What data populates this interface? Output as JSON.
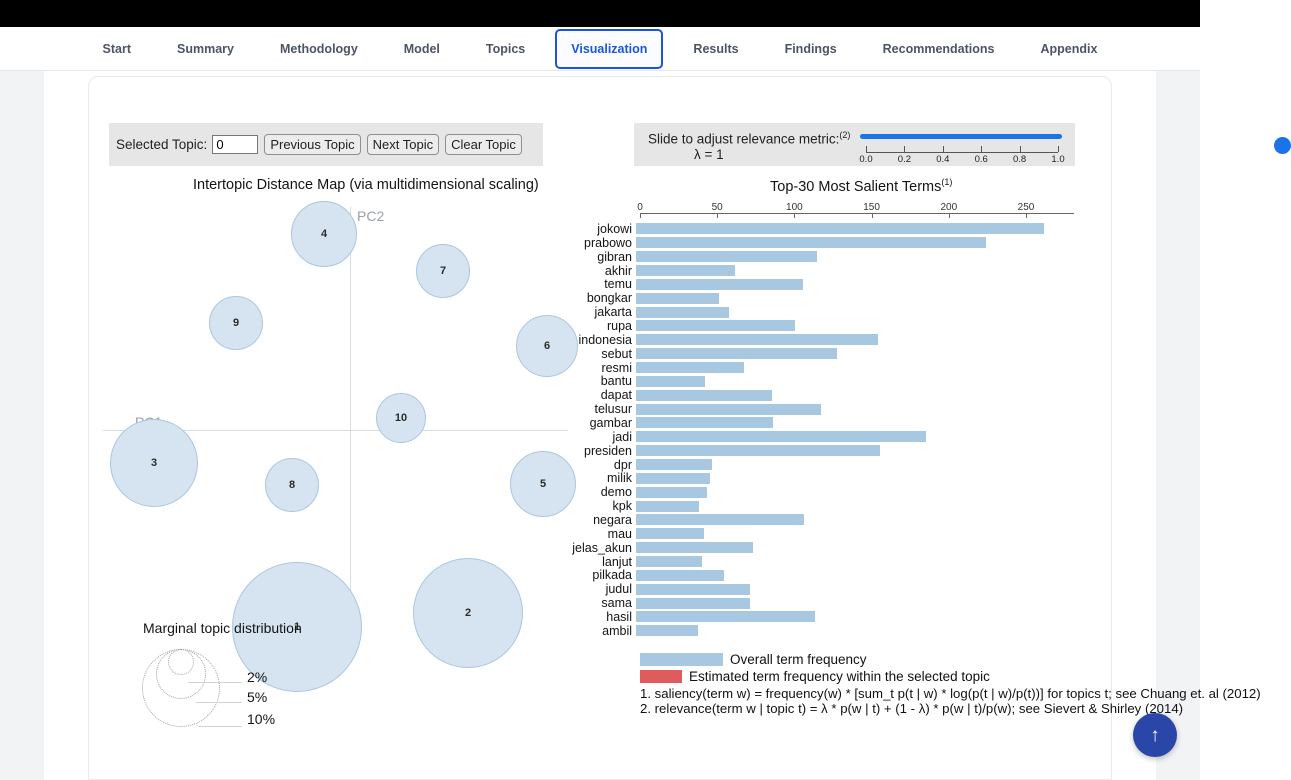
{
  "nav": {
    "tabs": [
      {
        "label": "Start",
        "active": false
      },
      {
        "label": "Summary",
        "active": false
      },
      {
        "label": "Methodology",
        "active": false
      },
      {
        "label": "Model",
        "active": false
      },
      {
        "label": "Topics",
        "active": false
      },
      {
        "label": "Visualization",
        "active": true
      },
      {
        "label": "Results",
        "active": false
      },
      {
        "label": "Findings",
        "active": false
      },
      {
        "label": "Recommendations",
        "active": false
      },
      {
        "label": "Appendix",
        "active": false
      }
    ]
  },
  "controls": {
    "label": "Selected Topic:",
    "topic_value": "0",
    "buttons": [
      "Previous Topic",
      "Next Topic",
      "Clear Topic"
    ]
  },
  "slider": {
    "label": "Slide to adjust relevance metric:",
    "label_sup": "(2)",
    "lambda": "λ = 1",
    "ticks": [
      "0.0",
      "0.2",
      "0.4",
      "0.6",
      "0.8",
      "1.0"
    ]
  },
  "intertopic": {
    "title": "Intertopic Distance Map (via multidimensional scaling)",
    "x_axis_label": "PC1",
    "y_axis_label": "PC2",
    "marginal_label": "Marginal topic distribution",
    "size_legend": [
      "2%",
      "5%",
      "10%"
    ]
  },
  "salient": {
    "title": "Top-30 Most Salient Terms",
    "title_sup": "(1)",
    "legend": [
      {
        "label": "Overall term frequency",
        "color": "#a8c7e1"
      },
      {
        "label": "Estimated term frequency within the selected topic",
        "color": "#e05c5c"
      }
    ],
    "footnotes": [
      "1. saliency(term w) = frequency(w) * [sum_t p(t | w) * log(p(t | w)/p(t))] for topics t; see Chuang et. al (2012)",
      "2. relevance(term w | topic t) = λ * p(w | t) + (1 - λ) * p(w | t)/p(w); see Sievert & Shirley (2014)"
    ]
  },
  "chart_data": [
    {
      "type": "scatter",
      "title": "Intertopic Distance Map (via multidimensional scaling)",
      "xlabel": "PC1",
      "ylabel": "PC2",
      "legend_position": "bottom-left",
      "grid": false,
      "note": "bubble positions/radii in screen px; topics sized by marginal distribution",
      "points": [
        {
          "topic": 1,
          "cx": 297,
          "cy": 627,
          "r": 65
        },
        {
          "topic": 2,
          "cx": 468,
          "cy": 613,
          "r": 55
        },
        {
          "topic": 3,
          "cx": 154,
          "cy": 463,
          "r": 44
        },
        {
          "topic": 4,
          "cx": 324,
          "cy": 234,
          "r": 33
        },
        {
          "topic": 5,
          "cx": 543,
          "cy": 484,
          "r": 33
        },
        {
          "topic": 6,
          "cx": 547,
          "cy": 346,
          "r": 31
        },
        {
          "topic": 7,
          "cx": 443,
          "cy": 271,
          "r": 27
        },
        {
          "topic": 8,
          "cx": 292,
          "cy": 485,
          "r": 27
        },
        {
          "topic": 9,
          "cx": 236,
          "cy": 323,
          "r": 27
        },
        {
          "topic": 10,
          "cx": 401,
          "cy": 418,
          "r": 25
        }
      ]
    },
    {
      "type": "bar",
      "title": "Top-30 Most Salient Terms",
      "orientation": "horizontal",
      "xlim": [
        0,
        280
      ],
      "x_ticks": [
        0,
        50,
        100,
        150,
        200,
        250
      ],
      "categories": [
        "jokowi",
        "prabowo",
        "gibran",
        "akhir",
        "temu",
        "bongkar",
        "jakarta",
        "rupa",
        "indonesia",
        "sebut",
        "resmi",
        "bantu",
        "dapat",
        "telusur",
        "gambar",
        "jadi",
        "presiden",
        "dpr",
        "milik",
        "demo",
        "kpk",
        "negara",
        "mau",
        "jelas_akun",
        "lanjut",
        "pilkada",
        "judul",
        "sama",
        "hasil",
        "ambil"
      ],
      "values": [
        264,
        227,
        117,
        64,
        108,
        54,
        60,
        103,
        157,
        130,
        70,
        45,
        88,
        120,
        89,
        188,
        158,
        49,
        48,
        46,
        41,
        109,
        44,
        76,
        43,
        57,
        74,
        74,
        116,
        40
      ]
    }
  ],
  "fab": {
    "icon": "up-arrow",
    "glyph": "↑",
    "color": "#2a46a8"
  }
}
